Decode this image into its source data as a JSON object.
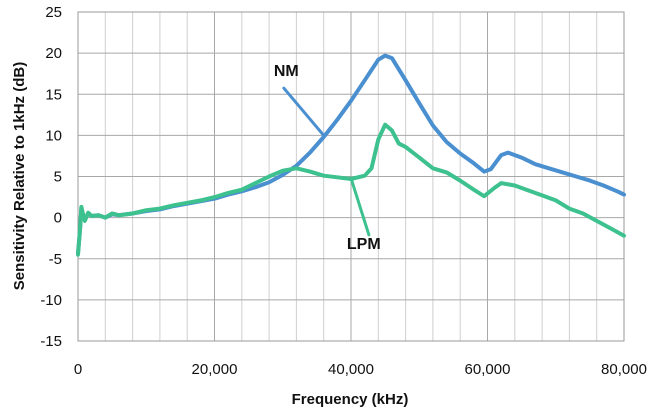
{
  "chart_data": {
    "type": "line",
    "title": "",
    "xlabel": "Frequency (kHz)",
    "ylabel": "Sensitivity Relative to 1kHz (dB)",
    "xlim": [
      0,
      80000
    ],
    "ylim": [
      -15,
      25
    ],
    "x_ticks": [
      0,
      20000,
      40000,
      60000,
      80000
    ],
    "x_tick_labels": [
      "0",
      "20,000",
      "40,000",
      "60,000",
      "80,000"
    ],
    "y_ticks": [
      -15,
      -10,
      -5,
      0,
      5,
      10,
      15,
      20,
      25
    ],
    "y_tick_labels": [
      "-15",
      "-10",
      "-5",
      "0",
      "5",
      "10",
      "15",
      "20",
      "25"
    ],
    "grid": true,
    "grid_x_step": 4000,
    "grid_y_step": 5,
    "legend": "inline-labels",
    "series": [
      {
        "name": "NM",
        "color": "#4A8FD0",
        "points": [
          [
            0,
            -4.3
          ],
          [
            300,
            -1.5
          ],
          [
            500,
            1.2
          ],
          [
            700,
            0.5
          ],
          [
            1000,
            -0.3
          ],
          [
            1500,
            0.5
          ],
          [
            2000,
            0.2
          ],
          [
            3000,
            0.3
          ],
          [
            4000,
            0
          ],
          [
            5000,
            0.4
          ],
          [
            6000,
            0.3
          ],
          [
            8000,
            0.5
          ],
          [
            10000,
            0.8
          ],
          [
            12000,
            1.0
          ],
          [
            14000,
            1.4
          ],
          [
            16000,
            1.7
          ],
          [
            18000,
            2.0
          ],
          [
            20000,
            2.3
          ],
          [
            22000,
            2.8
          ],
          [
            24000,
            3.2
          ],
          [
            26000,
            3.7
          ],
          [
            28000,
            4.3
          ],
          [
            30000,
            5.2
          ],
          [
            32000,
            6.3
          ],
          [
            34000,
            7.9
          ],
          [
            36000,
            9.8
          ],
          [
            38000,
            11.9
          ],
          [
            40000,
            14.2
          ],
          [
            42000,
            16.7
          ],
          [
            44000,
            19.2
          ],
          [
            45000,
            19.7
          ],
          [
            46000,
            19.4
          ],
          [
            48000,
            16.7
          ],
          [
            50000,
            13.9
          ],
          [
            52000,
            11.2
          ],
          [
            54000,
            9.2
          ],
          [
            56000,
            7.8
          ],
          [
            58000,
            6.6
          ],
          [
            59500,
            5.6
          ],
          [
            60500,
            5.9
          ],
          [
            62000,
            7.6
          ],
          [
            63000,
            7.9
          ],
          [
            65000,
            7.3
          ],
          [
            67000,
            6.5
          ],
          [
            69000,
            6.0
          ],
          [
            71000,
            5.5
          ],
          [
            73000,
            5.0
          ],
          [
            75000,
            4.5
          ],
          [
            77000,
            3.9
          ],
          [
            79000,
            3.2
          ],
          [
            80000,
            2.8
          ]
        ]
      },
      {
        "name": "LPM",
        "color": "#3DC18E",
        "points": [
          [
            0,
            -4.5
          ],
          [
            300,
            -1.5
          ],
          [
            500,
            1.3
          ],
          [
            700,
            0.5
          ],
          [
            1000,
            -0.4
          ],
          [
            1500,
            0.6
          ],
          [
            2000,
            0.2
          ],
          [
            3000,
            0.3
          ],
          [
            4000,
            0
          ],
          [
            5000,
            0.5
          ],
          [
            6000,
            0.3
          ],
          [
            8000,
            0.5
          ],
          [
            10000,
            0.9
          ],
          [
            12000,
            1.1
          ],
          [
            14000,
            1.5
          ],
          [
            16000,
            1.8
          ],
          [
            18000,
            2.1
          ],
          [
            20000,
            2.5
          ],
          [
            22000,
            3.0
          ],
          [
            24000,
            3.4
          ],
          [
            26000,
            4.2
          ],
          [
            28000,
            5.0
          ],
          [
            30000,
            5.7
          ],
          [
            32000,
            6.0
          ],
          [
            34000,
            5.6
          ],
          [
            36000,
            5.1
          ],
          [
            38000,
            4.9
          ],
          [
            40000,
            4.7
          ],
          [
            42000,
            5.1
          ],
          [
            43000,
            6.0
          ],
          [
            44000,
            9.5
          ],
          [
            45000,
            11.3
          ],
          [
            46000,
            10.6
          ],
          [
            47000,
            9.0
          ],
          [
            48000,
            8.6
          ],
          [
            50000,
            7.3
          ],
          [
            52000,
            6.0
          ],
          [
            54000,
            5.5
          ],
          [
            56000,
            4.5
          ],
          [
            58000,
            3.4
          ],
          [
            59500,
            2.6
          ],
          [
            61000,
            3.6
          ],
          [
            62000,
            4.2
          ],
          [
            64000,
            3.9
          ],
          [
            66000,
            3.3
          ],
          [
            68000,
            2.7
          ],
          [
            70000,
            2.1
          ],
          [
            72000,
            1.1
          ],
          [
            74000,
            0.5
          ],
          [
            76000,
            -0.4
          ],
          [
            78000,
            -1.3
          ],
          [
            80000,
            -2.2
          ]
        ]
      }
    ],
    "annotations": [
      {
        "text": "NM",
        "series": "NM",
        "label_at": [
          28700,
          17.2
        ],
        "points_to": [
          36000,
          10.0
        ]
      },
      {
        "text": "LPM",
        "series": "LPM",
        "label_at": [
          39400,
          -3.8
        ],
        "points_to": [
          40000,
          4.8
        ]
      }
    ]
  }
}
